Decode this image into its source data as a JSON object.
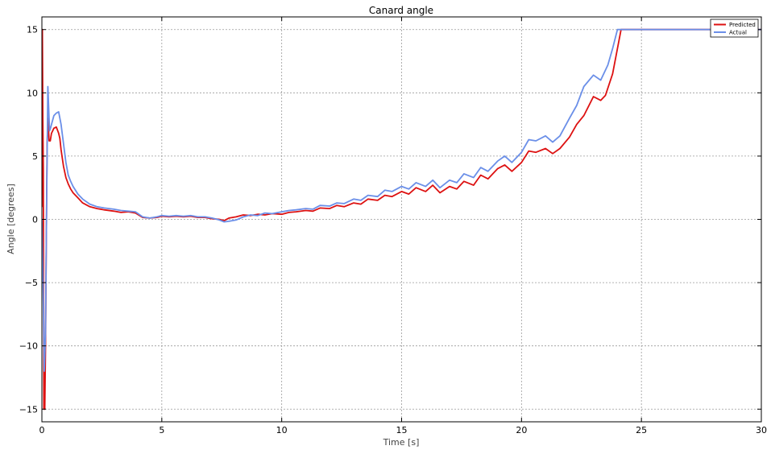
{
  "chart_data": {
    "type": "line",
    "title": "Canard angle",
    "xlabel": "Time [s]",
    "ylabel": "Angle [degrees]",
    "xlim": [
      0,
      30
    ],
    "ylim": [
      -16,
      16
    ],
    "xticks": [
      0,
      5,
      10,
      15,
      20,
      25,
      30
    ],
    "yticks": [
      15,
      10,
      5,
      0,
      -5,
      -10,
      -15
    ],
    "xtick_labels": [
      "0",
      "5",
      "10",
      "15",
      "20",
      "25",
      "30"
    ],
    "ytick_labels": [
      "15",
      "10",
      "5",
      "0",
      "−5",
      "−10",
      "−15"
    ],
    "grid": true,
    "legend_position": "top-right",
    "series": [
      {
        "name": "Predicted",
        "color": "#dd1111",
        "x": [
          0.0,
          0.02,
          0.04,
          0.06,
          0.08,
          0.12,
          0.15,
          0.18,
          0.22,
          0.26,
          0.3,
          0.35,
          0.4,
          0.45,
          0.5,
          0.6,
          0.7,
          0.75,
          0.8,
          0.9,
          1.0,
          1.1,
          1.2,
          1.3,
          1.5,
          1.7,
          2.0,
          2.3,
          2.6,
          3.0,
          3.3,
          3.6,
          3.9,
          4.2,
          4.5,
          4.8,
          5.0,
          5.3,
          5.6,
          5.9,
          6.2,
          6.5,
          6.8,
          7.1,
          7.4,
          7.6,
          7.8,
          8.1,
          8.4,
          8.7,
          9.0,
          9.3,
          9.6,
          10.0,
          10.3,
          10.6,
          11.0,
          11.3,
          11.6,
          12.0,
          12.3,
          12.6,
          13.0,
          13.3,
          13.6,
          14.0,
          14.3,
          14.6,
          15.0,
          15.3,
          15.6,
          16.0,
          16.3,
          16.6,
          17.0,
          17.3,
          17.6,
          18.0,
          18.3,
          18.6,
          19.0,
          19.3,
          19.6,
          20.0,
          20.3,
          20.6,
          21.0,
          21.3,
          21.6,
          22.0,
          22.3,
          22.6,
          23.0,
          23.3,
          23.5,
          23.8,
          24.0,
          24.1,
          24.15,
          24.2,
          25.0,
          30.0
        ],
        "values": [
          1.0,
          15.0,
          8.0,
          4.0,
          -15.0,
          -15.0,
          -10.0,
          -2.0,
          6.0,
          8.0,
          6.2,
          6.2,
          6.8,
          7.0,
          7.2,
          7.3,
          6.8,
          6.4,
          5.5,
          4.2,
          3.3,
          2.8,
          2.4,
          2.1,
          1.7,
          1.3,
          1.0,
          0.85,
          0.75,
          0.65,
          0.55,
          0.6,
          0.5,
          0.15,
          0.1,
          0.15,
          0.25,
          0.2,
          0.25,
          0.2,
          0.25,
          0.15,
          0.15,
          0.05,
          0.0,
          -0.1,
          0.1,
          0.2,
          0.35,
          0.3,
          0.4,
          0.35,
          0.45,
          0.4,
          0.55,
          0.6,
          0.7,
          0.65,
          0.9,
          0.85,
          1.1,
          1.0,
          1.3,
          1.2,
          1.6,
          1.5,
          1.9,
          1.8,
          2.2,
          2.0,
          2.5,
          2.2,
          2.7,
          2.1,
          2.6,
          2.4,
          3.0,
          2.7,
          3.5,
          3.2,
          4.0,
          4.3,
          3.8,
          4.5,
          5.4,
          5.3,
          5.6,
          5.2,
          5.6,
          6.5,
          7.5,
          8.2,
          9.7,
          9.4,
          9.8,
          11.5,
          13.5,
          14.5,
          15.0,
          15.0,
          15.0,
          15.0
        ]
      },
      {
        "name": "Actual",
        "color": "#6b8fe8",
        "x": [
          0.0,
          0.05,
          0.1,
          0.15,
          0.2,
          0.25,
          0.28,
          0.32,
          0.36,
          0.4,
          0.5,
          0.6,
          0.7,
          0.8,
          0.9,
          1.0,
          1.1,
          1.2,
          1.3,
          1.5,
          1.7,
          2.0,
          2.3,
          2.6,
          3.0,
          3.3,
          3.6,
          3.9,
          4.2,
          4.5,
          4.8,
          5.0,
          5.3,
          5.6,
          5.9,
          6.2,
          6.5,
          6.8,
          7.1,
          7.4,
          7.6,
          7.8,
          8.1,
          8.4,
          8.7,
          9.0,
          9.3,
          9.6,
          10.0,
          10.3,
          10.6,
          11.0,
          11.3,
          11.6,
          12.0,
          12.3,
          12.6,
          13.0,
          13.3,
          13.6,
          14.0,
          14.3,
          14.6,
          15.0,
          15.3,
          15.6,
          16.0,
          16.3,
          16.6,
          17.0,
          17.3,
          17.6,
          18.0,
          18.3,
          18.6,
          19.0,
          19.3,
          19.6,
          20.0,
          20.3,
          20.6,
          21.0,
          21.3,
          21.6,
          22.0,
          22.3,
          22.6,
          23.0,
          23.3,
          23.6,
          23.8,
          24.0,
          24.1,
          30.0
        ],
        "values": [
          0.0,
          -5.0,
          -12.0,
          -9.0,
          2.0,
          10.5,
          9.0,
          7.0,
          7.2,
          7.5,
          8.2,
          8.4,
          8.5,
          7.5,
          6.0,
          4.5,
          3.5,
          3.0,
          2.6,
          2.0,
          1.6,
          1.2,
          1.0,
          0.9,
          0.8,
          0.7,
          0.65,
          0.6,
          0.2,
          0.1,
          0.2,
          0.3,
          0.25,
          0.3,
          0.25,
          0.3,
          0.2,
          0.2,
          0.1,
          -0.05,
          -0.2,
          -0.15,
          -0.05,
          0.2,
          0.35,
          0.3,
          0.5,
          0.45,
          0.6,
          0.7,
          0.75,
          0.85,
          0.8,
          1.1,
          1.05,
          1.3,
          1.25,
          1.6,
          1.5,
          1.9,
          1.8,
          2.3,
          2.2,
          2.6,
          2.4,
          2.9,
          2.6,
          3.1,
          2.5,
          3.1,
          2.9,
          3.6,
          3.3,
          4.1,
          3.8,
          4.6,
          5.0,
          4.5,
          5.3,
          6.3,
          6.2,
          6.6,
          6.1,
          6.6,
          8.0,
          9.0,
          10.5,
          11.4,
          11.0,
          12.2,
          13.5,
          15.0,
          15.0,
          15.0
        ]
      }
    ]
  }
}
